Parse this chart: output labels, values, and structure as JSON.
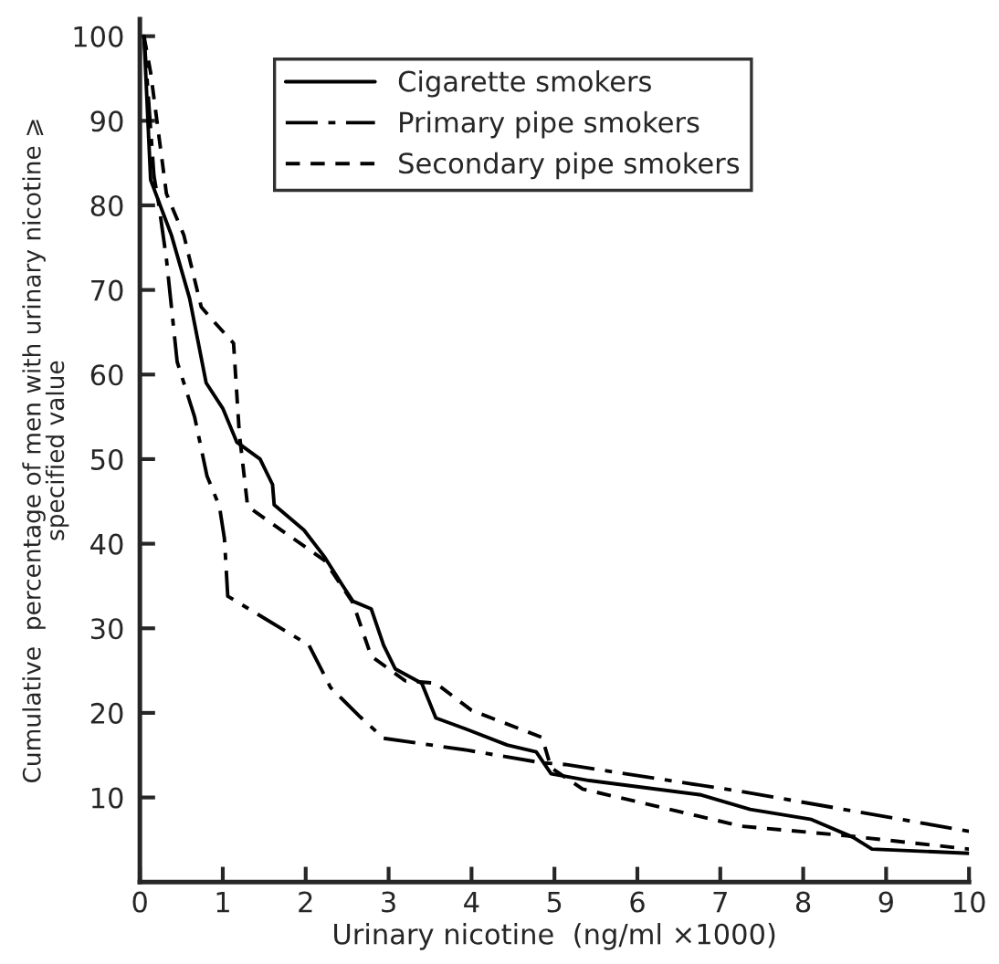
{
  "chart_data": {
    "type": "line",
    "xlabel": "Urinary nicotine  (ng/ml ×1000)",
    "ylabel": "Cumulative  percentage of men with urinary nicotine ⩾\nspecified value",
    "xlim": [
      0,
      10
    ],
    "ylim": [
      0,
      102
    ],
    "xticks": [
      0,
      1,
      2,
      3,
      4,
      5,
      6,
      7,
      8,
      9,
      10
    ],
    "yticks": [
      10,
      20,
      30,
      40,
      50,
      60,
      70,
      80,
      90,
      100
    ],
    "grid": false,
    "legend": "top",
    "marker": "none",
    "series": [
      {
        "name": "Cigarette smokers",
        "color": "#000000",
        "line_style": "solid",
        "x": [
          0.05,
          0.13,
          0.38,
          0.6,
          0.8,
          1.0,
          1.17,
          1.45,
          1.6,
          1.62,
          1.98,
          2.23,
          2.45,
          2.57,
          2.79,
          2.94,
          3.08,
          3.4,
          3.57,
          3.93,
          4.43,
          4.78,
          4.96,
          5.42,
          6.77,
          7.36,
          8.1,
          8.6,
          8.83,
          10
        ],
        "values": [
          100,
          83,
          76.5,
          69,
          59,
          56,
          52,
          50,
          47,
          44.6,
          41.6,
          38.4,
          35,
          33.2,
          32.3,
          28,
          25.2,
          23.5,
          19.4,
          18.1,
          16.2,
          15.4,
          12.8,
          12,
          10.3,
          8.6,
          7.4,
          5.3,
          3.9,
          3.4
        ]
      },
      {
        "name": "Primary pipe smokers",
        "color": "#000000",
        "line_style": "dashdot",
        "x": [
          0.05,
          0.17,
          0.23,
          0.32,
          0.45,
          0.66,
          0.81,
          0.96,
          1.02,
          1.06,
          2.04,
          2.3,
          2.66,
          2.94,
          3.94,
          4.85,
          5.13,
          7.26,
          10
        ],
        "values": [
          100,
          83.5,
          80,
          73.7,
          61.5,
          55,
          48,
          44.4,
          40.6,
          33.8,
          28,
          23,
          19.5,
          17,
          15.6,
          14.1,
          13.9,
          10.7,
          6
        ]
      },
      {
        "name": "Secondary pipe smokers",
        "color": "#000000",
        "line_style": "dashed",
        "x": [
          0.05,
          0.13,
          0.32,
          0.53,
          0.74,
          0.87,
          1.13,
          1.2,
          1.3,
          2.23,
          2.57,
          2.79,
          3.2,
          3.57,
          4.0,
          4.85,
          4.96,
          5.34,
          7.26,
          8.5,
          10
        ],
        "values": [
          100,
          95.7,
          81.4,
          76.5,
          68,
          66.5,
          63.7,
          53,
          44.4,
          38,
          33,
          26.7,
          23.8,
          23.5,
          20.3,
          17.1,
          13.5,
          11,
          6.6,
          5.5,
          3.9
        ]
      }
    ]
  }
}
